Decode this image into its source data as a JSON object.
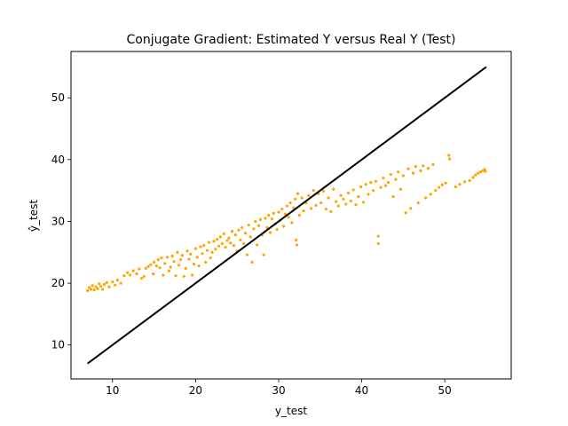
{
  "chart_data": {
    "type": "scatter",
    "title": "Conjugate Gradient: Estimated Y versus Real Y (Test)",
    "xlabel": "y_test",
    "ylabel": "ŷ_test",
    "xlim": [
      5,
      58
    ],
    "ylim": [
      4.5,
      57.5
    ],
    "xticks": [
      10,
      20,
      30,
      40,
      50
    ],
    "yticks": [
      10,
      20,
      30,
      40,
      50
    ],
    "grid": false,
    "colors": {
      "points": "#ffa500",
      "reference_line": "#000000"
    },
    "reference_line": {
      "name": "",
      "x": [
        7,
        55
      ],
      "y": [
        7,
        55
      ]
    },
    "series": [
      {
        "name": "",
        "points": [
          [
            7.0,
            18.8
          ],
          [
            7.2,
            19.3
          ],
          [
            7.4,
            19.0
          ],
          [
            7.6,
            19.6
          ],
          [
            7.8,
            18.9
          ],
          [
            8.0,
            19.4
          ],
          [
            8.2,
            19.1
          ],
          [
            8.4,
            19.9
          ],
          [
            8.6,
            19.5
          ],
          [
            8.8,
            19.0
          ],
          [
            9.0,
            19.8
          ],
          [
            9.3,
            20.1
          ],
          [
            9.6,
            19.4
          ],
          [
            10.0,
            20.2
          ],
          [
            10.3,
            19.7
          ],
          [
            10.6,
            20.5
          ],
          [
            11.0,
            20.0
          ],
          [
            11.4,
            21.2
          ],
          [
            11.8,
            21.7
          ],
          [
            12.1,
            21.3
          ],
          [
            12.5,
            22.0
          ],
          [
            12.9,
            21.5
          ],
          [
            13.2,
            22.3
          ],
          [
            13.5,
            20.8
          ],
          [
            13.8,
            21.1
          ],
          [
            14.0,
            22.4
          ],
          [
            14.3,
            22.7
          ],
          [
            14.6,
            23.0
          ],
          [
            14.9,
            21.5
          ],
          [
            15.0,
            23.4
          ],
          [
            15.3,
            22.8
          ],
          [
            15.5,
            23.8
          ],
          [
            15.7,
            22.5
          ],
          [
            15.9,
            24.1
          ],
          [
            16.1,
            21.3
          ],
          [
            16.3,
            23.2
          ],
          [
            16.6,
            24.2
          ],
          [
            16.8,
            22.0
          ],
          [
            17.0,
            22.6
          ],
          [
            17.2,
            24.4
          ],
          [
            17.4,
            23.5
          ],
          [
            17.6,
            21.2
          ],
          [
            17.8,
            25.0
          ],
          [
            18.0,
            22.9
          ],
          [
            18.2,
            23.8
          ],
          [
            18.4,
            24.5
          ],
          [
            18.6,
            21.1
          ],
          [
            18.8,
            22.4
          ],
          [
            19.0,
            25.2
          ],
          [
            19.2,
            23.9
          ],
          [
            19.4,
            24.7
          ],
          [
            19.6,
            21.3
          ],
          [
            19.8,
            23.1
          ],
          [
            20.0,
            25.6
          ],
          [
            20.2,
            24.2
          ],
          [
            20.4,
            22.8
          ],
          [
            20.6,
            25.9
          ],
          [
            20.8,
            24.8
          ],
          [
            21.0,
            26.1
          ],
          [
            21.2,
            23.4
          ],
          [
            21.4,
            25.3
          ],
          [
            21.6,
            26.6
          ],
          [
            21.8,
            24.1
          ],
          [
            22.0,
            25.0
          ],
          [
            22.2,
            26.8
          ],
          [
            22.4,
            25.5
          ],
          [
            22.6,
            27.1
          ],
          [
            22.8,
            26.0
          ],
          [
            23.0,
            27.5
          ],
          [
            23.2,
            26.4
          ],
          [
            23.4,
            28.0
          ],
          [
            23.6,
            25.8
          ],
          [
            23.8,
            26.9
          ],
          [
            24.0,
            27.3
          ],
          [
            24.2,
            26.5
          ],
          [
            24.4,
            28.4
          ],
          [
            24.6,
            26.1
          ],
          [
            24.8,
            27.8
          ],
          [
            25.0,
            25.2
          ],
          [
            25.2,
            28.6
          ],
          [
            25.4,
            27.0
          ],
          [
            25.6,
            29.0
          ],
          [
            25.8,
            26.4
          ],
          [
            26.0,
            28.1
          ],
          [
            26.2,
            24.6
          ],
          [
            26.4,
            29.4
          ],
          [
            26.6,
            27.5
          ],
          [
            26.8,
            23.4
          ],
          [
            27.0,
            28.8
          ],
          [
            27.2,
            30.0
          ],
          [
            27.4,
            26.2
          ],
          [
            27.6,
            29.3
          ],
          [
            27.8,
            30.3
          ],
          [
            28.0,
            27.8
          ],
          [
            28.2,
            24.6
          ],
          [
            28.4,
            30.5
          ],
          [
            28.6,
            29.0
          ],
          [
            28.8,
            31.0
          ],
          [
            29.0,
            28.2
          ],
          [
            29.2,
            30.4
          ],
          [
            29.4,
            31.3
          ],
          [
            29.6,
            29.6
          ],
          [
            29.8,
            28.7
          ],
          [
            30.0,
            31.5
          ],
          [
            30.2,
            30.2
          ],
          [
            30.4,
            32.0
          ],
          [
            30.6,
            29.2
          ],
          [
            30.8,
            31.2
          ],
          [
            31.0,
            32.5
          ],
          [
            31.2,
            30.7
          ],
          [
            31.4,
            33.0
          ],
          [
            31.6,
            29.8
          ],
          [
            31.8,
            32.2
          ],
          [
            32.0,
            33.6
          ],
          [
            32.1,
            27.0
          ],
          [
            32.2,
            26.2
          ],
          [
            32.3,
            34.5
          ],
          [
            32.5,
            31.0
          ],
          [
            32.8,
            33.8
          ],
          [
            33.0,
            31.7
          ],
          [
            33.3,
            33.0
          ],
          [
            33.6,
            34.2
          ],
          [
            33.9,
            32.1
          ],
          [
            34.2,
            35.0
          ],
          [
            34.5,
            32.6
          ],
          [
            34.8,
            34.5
          ],
          [
            35.1,
            33.0
          ],
          [
            35.4,
            34.9
          ],
          [
            35.7,
            32.0
          ],
          [
            36.0,
            33.8
          ],
          [
            36.3,
            31.6
          ],
          [
            36.6,
            35.2
          ],
          [
            36.9,
            33.2
          ],
          [
            37.2,
            32.5
          ],
          [
            37.5,
            34.2
          ],
          [
            37.8,
            33.6
          ],
          [
            38.1,
            32.8
          ],
          [
            38.4,
            34.6
          ],
          [
            38.7,
            33.3
          ],
          [
            39.0,
            35.1
          ],
          [
            39.3,
            32.7
          ],
          [
            39.6,
            34.0
          ],
          [
            39.9,
            35.6
          ],
          [
            40.2,
            33.1
          ],
          [
            40.5,
            36.0
          ],
          [
            40.8,
            34.4
          ],
          [
            41.1,
            36.3
          ],
          [
            41.4,
            35.0
          ],
          [
            41.7,
            36.5
          ],
          [
            42.0,
            27.6
          ],
          [
            42.0,
            26.4
          ],
          [
            42.3,
            35.5
          ],
          [
            42.6,
            37.0
          ],
          [
            42.9,
            35.8
          ],
          [
            43.2,
            36.3
          ],
          [
            43.5,
            37.6
          ],
          [
            43.8,
            34.0
          ],
          [
            44.1,
            36.8
          ],
          [
            44.4,
            38.0
          ],
          [
            44.7,
            35.2
          ],
          [
            45.0,
            37.4
          ],
          [
            45.3,
            31.4
          ],
          [
            45.6,
            38.5
          ],
          [
            45.9,
            32.1
          ],
          [
            46.2,
            37.8
          ],
          [
            46.5,
            38.9
          ],
          [
            46.8,
            33.0
          ],
          [
            47.1,
            38.2
          ],
          [
            47.4,
            39.0
          ],
          [
            47.7,
            33.8
          ],
          [
            48.0,
            38.6
          ],
          [
            48.3,
            34.4
          ],
          [
            48.6,
            39.2
          ],
          [
            48.9,
            35.0
          ],
          [
            49.3,
            35.5
          ],
          [
            49.7,
            35.9
          ],
          [
            50.1,
            36.2
          ],
          [
            50.5,
            40.7
          ],
          [
            50.6,
            40.1
          ],
          [
            51.3,
            35.6
          ],
          [
            51.8,
            36.0
          ],
          [
            52.4,
            36.4
          ],
          [
            53.0,
            36.6
          ],
          [
            53.4,
            37.1
          ],
          [
            53.7,
            37.5
          ],
          [
            54.0,
            37.8
          ],
          [
            54.3,
            38.0
          ],
          [
            54.6,
            38.2
          ],
          [
            54.8,
            38.4
          ],
          [
            54.9,
            38.1
          ]
        ]
      }
    ]
  }
}
